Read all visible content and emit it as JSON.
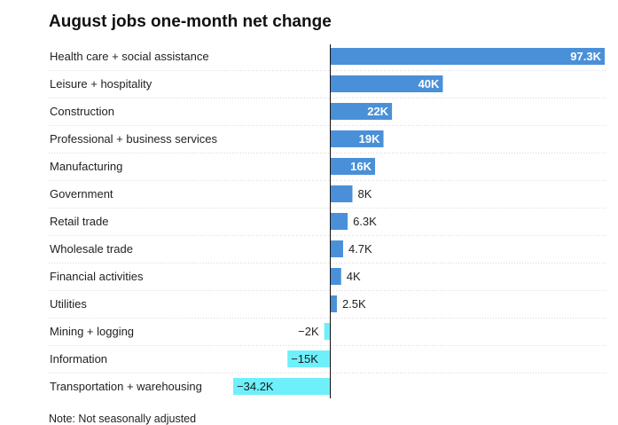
{
  "chart_data": {
    "type": "bar",
    "orientation": "horizontal",
    "title": "August jobs one-month net change",
    "categories": [
      "Health care + social assistance",
      "Leisure + hospitality",
      "Construction",
      "Professional + business services",
      "Manufacturing",
      "Government",
      "Retail trade",
      "Wholesale trade",
      "Financial activities",
      "Utilities",
      "Mining + logging",
      "Information",
      "Transportation + warehousing"
    ],
    "values": [
      97.3,
      40,
      22,
      19,
      16,
      8,
      6.3,
      4.7,
      4,
      2.5,
      -2,
      -15,
      -34.2
    ],
    "labels": [
      "97.3K",
      "40K",
      "22K",
      "19K",
      "16K",
      "8K",
      "6.3K",
      "4.7K",
      "4K",
      "2.5K",
      "−2K",
      "−15K",
      "−34.2K"
    ],
    "unit": "K",
    "xlim": [
      -34.2,
      97.3
    ],
    "grid": false,
    "colors": {
      "positive": "#4a90d9",
      "negative": "#6ef0fb",
      "axis": "#111111",
      "row_divider": "#d9d9d9",
      "label_inside": "#ffffff",
      "label_outside": "#222222"
    },
    "note": "Note: Not seasonally adjusted"
  }
}
